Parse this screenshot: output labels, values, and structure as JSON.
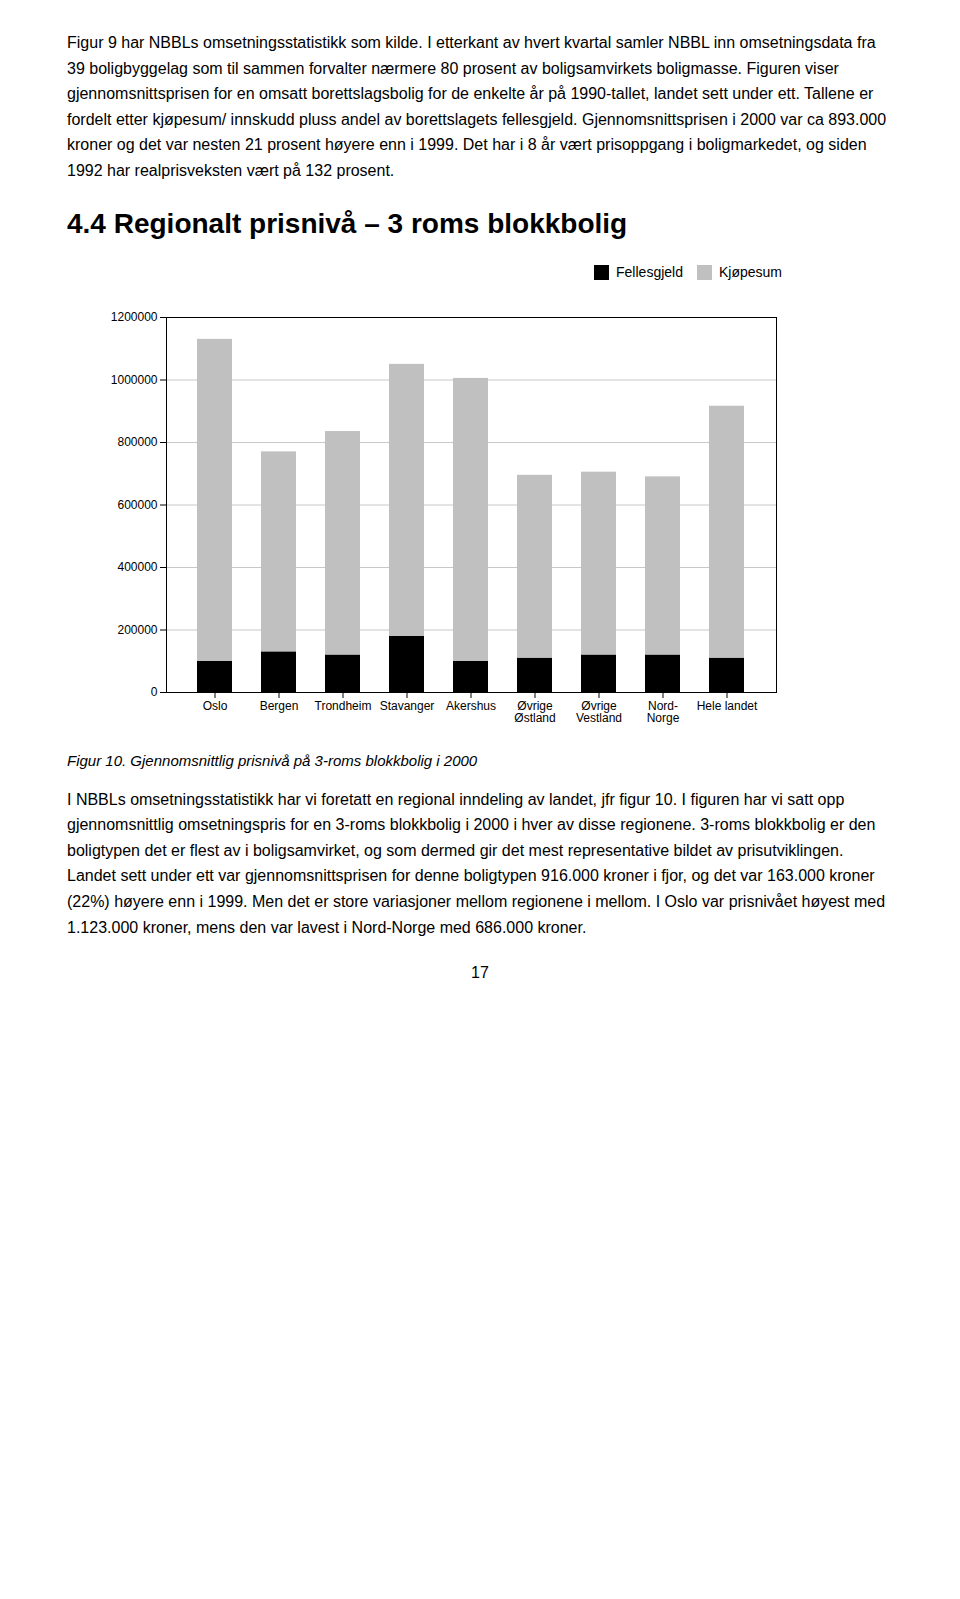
{
  "chart_data": {
    "type": "bar",
    "stacked": true,
    "title": "4.4 Regionalt prisnivå – 3 roms blokkbolig",
    "caption": "Figur 10. Gjennomsnittlig prisnivå på 3-roms blokkbolig i 2000",
    "annotations": [
      "Figur 9 har NBBLs omsetningsstatistikk som kilde. I etterkant av hvert kvartal samler NBBL inn omsetningsdata fra 39 boligbyggelag som til sammen forvalter nærmere 80 prosent av boligsamvirkets boligmasse. Figuren viser gjennomsnittsprisen for en omsatt borettslagsbolig for de enkelte år på 1990-tallet, landet sett under ett. Tallene er fordelt etter kjøpesum/ innskudd pluss andel av borettslagets fellesgjeld. Gjennomsnittsprisen i 2000 var ca 893.000 kroner og det var nesten 21 prosent høyere enn i 1999. Det har i 8 år vært prisoppgang i boligmarkedet, og siden 1992 har realprisveksten vært på 132 prosent.",
      "I NBBLs omsetningsstatistikk har vi foretatt en regional inndeling av landet, jfr figur 10. I figuren har vi satt opp gjennomsnittlig omsetningspris for en 3-roms blokkbolig i 2000 i hver av disse regionene. 3-roms blokkbolig er den boligtypen det er flest av i boligsamvirket, og som dermed gir det mest representative bildet av prisutviklingen. Landet sett under ett var gjennomsnittsprisen for denne boligtypen 916.000 kroner i fjor, og det var 163.000 kroner (22%) høyere enn i 1999. Men det er store variasjoner mellom regionene i mellom. I Oslo var prisnivået høyest med 1.123.000 kroner, mens den var lavest i Nord-Norge med 686.000 kroner.",
      "17"
    ],
    "categories": [
      "Oslo",
      "Bergen",
      "Trondheim",
      "Stavanger",
      "Akershus",
      "Øvrige\nØstland",
      "Øvrige\nVestland",
      "Nord-\nNorge",
      "Hele landet"
    ],
    "series": [
      {
        "name": "Fellesgjeld",
        "color": "#000000",
        "values": [
          100000,
          130000,
          120000,
          180000,
          100000,
          110000,
          120000,
          120000,
          110000
        ]
      },
      {
        "name": "Kjøpesum",
        "color": "#c0c0c0",
        "values": [
          1030000,
          640000,
          715000,
          870000,
          905000,
          585000,
          585000,
          570000,
          806000
        ]
      }
    ],
    "ylim": [
      0,
      1200000
    ],
    "yticks": [
      0,
      200000,
      400000,
      600000,
      800000,
      1000000,
      1200000
    ],
    "grid": true,
    "legend": "upper right"
  }
}
